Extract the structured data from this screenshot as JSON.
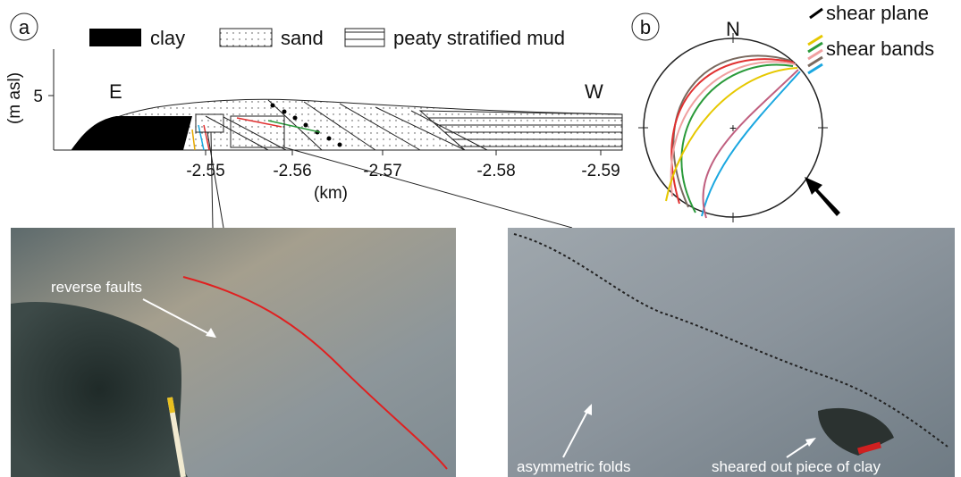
{
  "panel_a": {
    "label": "a",
    "legend": [
      "clay",
      "sand",
      "peaty stratified mud"
    ],
    "y_label": "(m asl)",
    "y_tick": "5",
    "x_ticks": [
      "-2.55",
      "-2.56",
      "-2.57",
      "-2.58",
      "-2.59"
    ],
    "x_label": "(km)",
    "east": "E",
    "west": "W"
  },
  "panel_b": {
    "label": "b",
    "north": "N",
    "legend": [
      "shear plane",
      "shear bands"
    ]
  },
  "photo_left": {
    "annotation": "reverse faults"
  },
  "photo_right": {
    "annotations": [
      "asymmetric folds",
      "sheared out piece of clay"
    ]
  }
}
